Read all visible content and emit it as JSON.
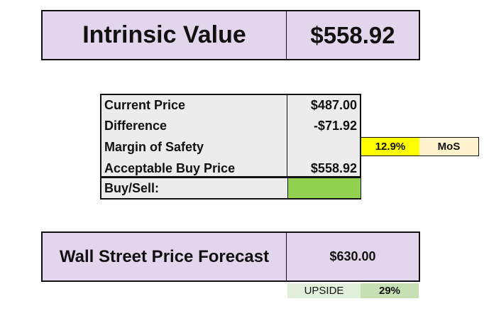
{
  "intrinsic": {
    "label": "Intrinsic Value",
    "value": "$558.92"
  },
  "metrics": {
    "current_price": {
      "label": "Current Price",
      "value": "$487.00"
    },
    "difference": {
      "label": "Difference",
      "value": "-$71.92"
    },
    "margin_of_safety": {
      "label": "Margin of Safety"
    },
    "acceptable_buy_price": {
      "label": "Acceptable Buy Price",
      "value": "$558.92"
    },
    "buy_sell": {
      "label": "Buy/Sell:"
    }
  },
  "mos": {
    "value": "12.9%",
    "label": "MoS"
  },
  "wall_street": {
    "label": "Wall Street Price Forecast",
    "value": "$630.00"
  },
  "upside": {
    "label": "UPSIDE",
    "value": "29%"
  },
  "colors": {
    "header_fill": "#e2d6ec",
    "table_fill": "#ececec",
    "buy_indicator": "#92d050",
    "mos_highlight": "#ffff00",
    "mos_label_fill": "#fff2cc",
    "upside_label_fill": "#e2efda",
    "upside_value_fill": "#c6e0b4"
  }
}
